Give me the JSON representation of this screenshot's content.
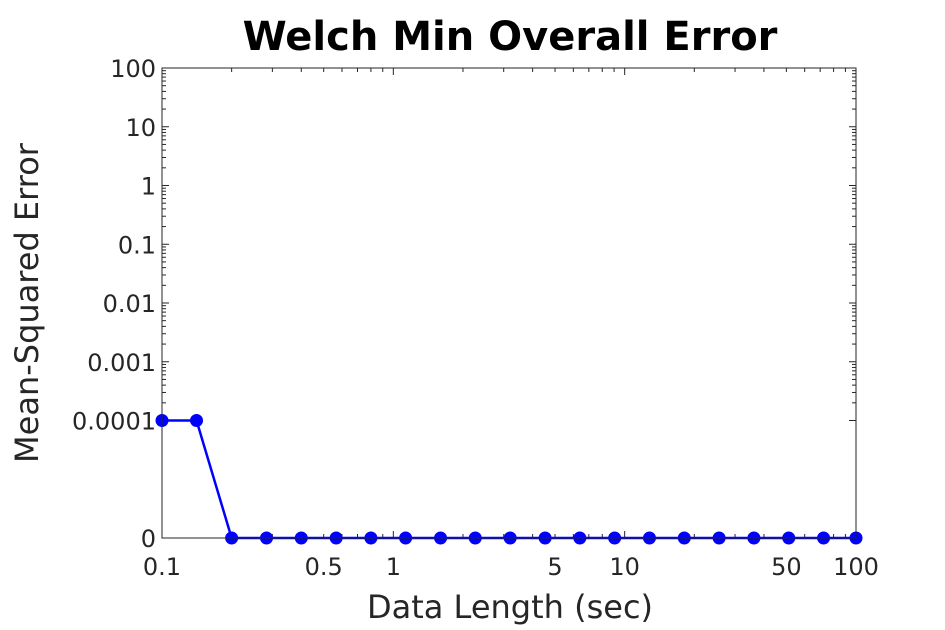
{
  "chart_data": {
    "type": "line",
    "title": "Welch Min Overall Error",
    "xlabel": "Data Length (sec)",
    "ylabel": "Mean-Squared Error",
    "x_scale": "log",
    "xlim": [
      0.1,
      100
    ],
    "x_ticks": [
      {
        "value": 0.1,
        "label": "0.1"
      },
      {
        "value": 0.5,
        "label": "0.5"
      },
      {
        "value": 1,
        "label": "1"
      },
      {
        "value": 5,
        "label": "5"
      },
      {
        "value": 10,
        "label": "10"
      },
      {
        "value": 50,
        "label": "50"
      },
      {
        "value": 100,
        "label": "100"
      }
    ],
    "y_scale": "symlog",
    "y_ticks": [
      {
        "value": 0,
        "label": "0"
      },
      {
        "value": 0.0001,
        "label": "0.0001"
      },
      {
        "value": 0.001,
        "label": "0.001"
      },
      {
        "value": 0.01,
        "label": "0.01"
      },
      {
        "value": 0.1,
        "label": "0.1"
      },
      {
        "value": 1,
        "label": "1"
      },
      {
        "value": 10,
        "label": "10"
      },
      {
        "value": 100,
        "label": "100"
      }
    ],
    "grid": false,
    "series": [
      {
        "color": "#0000ff",
        "marker": "circle",
        "x": [
          0.1,
          0.141,
          0.2,
          0.283,
          0.4,
          0.566,
          0.8,
          1.13,
          1.6,
          2.26,
          3.2,
          4.53,
          6.4,
          9.05,
          12.8,
          18.1,
          25.6,
          36.2,
          51.2,
          72.4,
          100
        ],
        "y": [
          0.0001,
          0.0001,
          0,
          0,
          0,
          0,
          0,
          0,
          0,
          0,
          0,
          0,
          0,
          0,
          0,
          0,
          0,
          0,
          0,
          0,
          0
        ]
      }
    ]
  }
}
